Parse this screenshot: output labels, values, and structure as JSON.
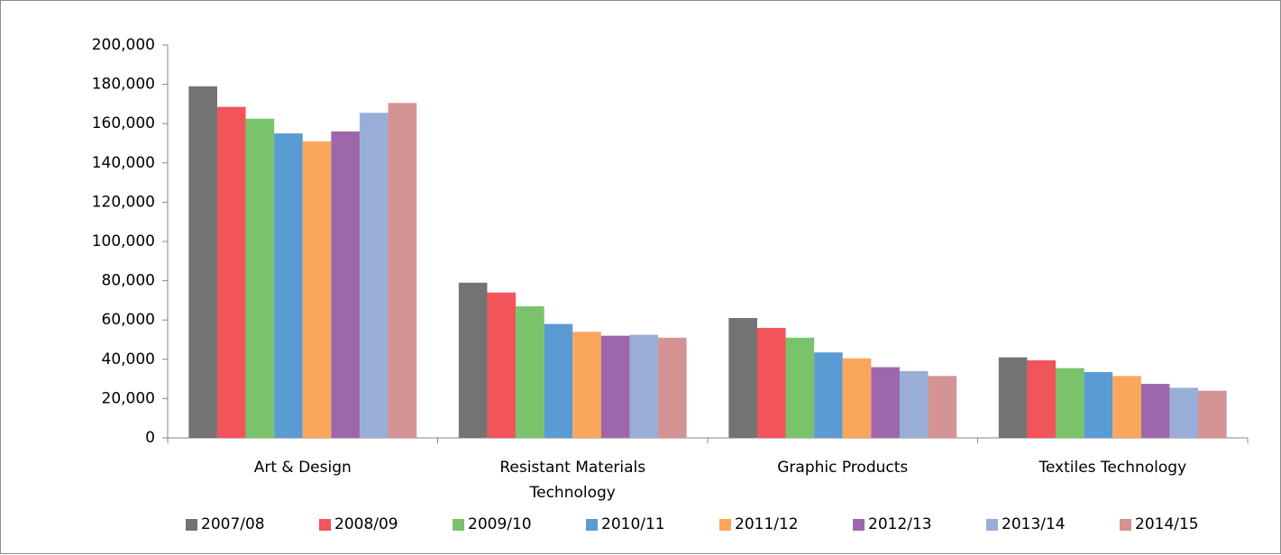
{
  "chart_data": {
    "type": "bar",
    "categories": [
      "Art & Design",
      "Resistant Materials Technology",
      "Graphic Products",
      "Textiles Technology"
    ],
    "series": [
      {
        "name": "2007/08",
        "color": "#737373",
        "values": [
          179000,
          79000,
          61000,
          41000
        ]
      },
      {
        "name": "2008/09",
        "color": "#f1545b",
        "values": [
          168500,
          74000,
          56000,
          39500
        ]
      },
      {
        "name": "2009/10",
        "color": "#7ac36a",
        "values": [
          162500,
          67000,
          51000,
          35500
        ]
      },
      {
        "name": "2010/11",
        "color": "#5a9bd4",
        "values": [
          155000,
          58000,
          43500,
          33500
        ]
      },
      {
        "name": "2011/12",
        "color": "#faa75b",
        "values": [
          151000,
          54000,
          40500,
          31500
        ]
      },
      {
        "name": "2012/13",
        "color": "#9e67ab",
        "values": [
          156000,
          52000,
          36000,
          27500
        ]
      },
      {
        "name": "2013/14",
        "color": "#99aed6",
        "values": [
          165500,
          52500,
          34000,
          25500
        ]
      },
      {
        "name": "2014/15",
        "color": "#d39392",
        "values": [
          170500,
          51000,
          31500,
          24000
        ]
      }
    ],
    "ylim": [
      0,
      200000
    ],
    "yticks": [
      0,
      {
        "value": 20000,
        "label": "20,000"
      },
      {
        "value": 40000,
        "label": "40,000"
      },
      {
        "value": 60000,
        "label": "60,000"
      },
      {
        "value": 80000,
        "label": "80,000"
      },
      {
        "value": 100000,
        "label": "100,000"
      },
      {
        "value": 120000,
        "label": "120,000"
      },
      {
        "value": 140000,
        "label": "140,000"
      },
      {
        "value": 160000,
        "label": "160,000"
      },
      {
        "value": 180000,
        "label": "180,000"
      },
      {
        "value": 200000,
        "label": "200,000"
      }
    ],
    "legend": "bottom"
  }
}
